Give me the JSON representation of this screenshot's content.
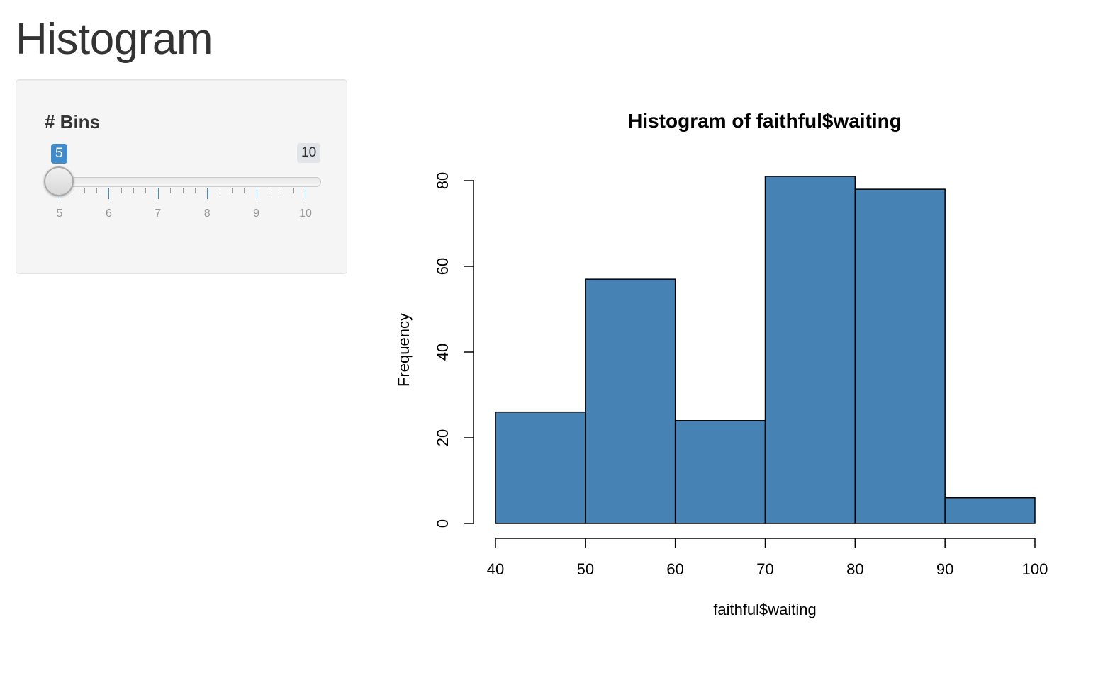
{
  "page": {
    "title": "Histogram"
  },
  "sidebar": {
    "slider": {
      "label": "# Bins",
      "min": 5,
      "max": 10,
      "value": 5,
      "value_label": "5",
      "max_label": "10",
      "tick_labels": [
        "5",
        "6",
        "7",
        "8",
        "9",
        "10"
      ],
      "accent_color": "#428bca"
    }
  },
  "chart_data": {
    "type": "bar",
    "title": "Histogram of faithful$waiting",
    "xlabel": "faithful$waiting",
    "ylabel": "Frequency",
    "bin_edges": [
      40,
      50,
      60,
      70,
      80,
      90,
      100
    ],
    "values": [
      26,
      57,
      24,
      81,
      78,
      6
    ],
    "x_ticks": [
      40,
      50,
      60,
      70,
      80,
      90,
      100
    ],
    "y_ticks": [
      0,
      20,
      40,
      60,
      80
    ],
    "xlim": [
      40,
      100
    ],
    "ylim": [
      0,
      80
    ],
    "bar_color": "#4682b4",
    "edge_color": "#000000",
    "grid": false
  }
}
